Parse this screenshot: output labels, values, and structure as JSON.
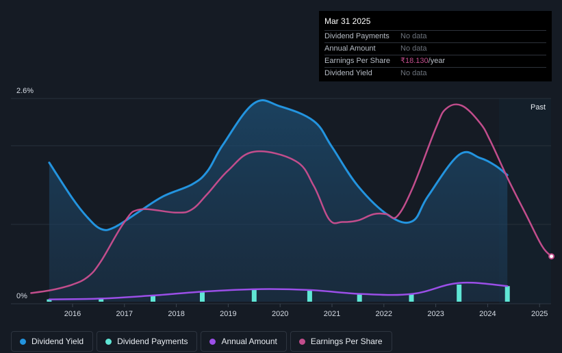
{
  "tooltip": {
    "title": "Mar 31 2025",
    "rows": [
      {
        "label": "Dividend Payments",
        "value": "No data"
      },
      {
        "label": "Annual Amount",
        "value": "No data"
      },
      {
        "label": "Earnings Per Share",
        "value": "₹18.130",
        "unit": "/year"
      },
      {
        "label": "Dividend Yield",
        "value": "No data"
      }
    ]
  },
  "past_label": "Past",
  "legend": [
    {
      "label": "Dividend Yield",
      "color": "#2394df"
    },
    {
      "label": "Dividend Payments",
      "color": "#5fe6d5"
    },
    {
      "label": "Annual Amount",
      "color": "#9b4fe8"
    },
    {
      "label": "Earnings Per Share",
      "color": "#c24d8c"
    }
  ],
  "chart_data": {
    "type": "line",
    "y_axis": {
      "top_label": "2.6%",
      "bottom_label": "0%",
      "ylim": [
        0,
        2.6
      ]
    },
    "x_ticks": [
      "2016",
      "2017",
      "2018",
      "2019",
      "2020",
      "2021",
      "2022",
      "2023",
      "2024",
      "2025"
    ],
    "series": [
      {
        "name": "Dividend Yield",
        "kind": "area",
        "x": [
          2015.55,
          2016.0,
          2016.3,
          2016.55,
          2016.8,
          2017.3,
          2017.75,
          2018.3,
          2018.6,
          2018.9,
          2019.5,
          2020.0,
          2020.65,
          2021.0,
          2021.5,
          2022.1,
          2022.55,
          2022.85,
          2023.45,
          2023.85,
          2024.15,
          2024.38
        ],
        "values": [
          1.78,
          1.32,
          1.07,
          0.93,
          0.95,
          1.16,
          1.35,
          1.5,
          1.67,
          2.01,
          2.54,
          2.5,
          2.31,
          1.98,
          1.48,
          1.1,
          1.03,
          1.35,
          1.88,
          1.84,
          1.74,
          1.62
        ]
      },
      {
        "name": "Earnings Per Share",
        "x": [
          2015.2,
          2015.6,
          2016.0,
          2016.3,
          2016.55,
          2017.0,
          2017.3,
          2018.0,
          2018.3,
          2018.6,
          2019.0,
          2019.5,
          2020.3,
          2020.65,
          2020.95,
          2021.2,
          2021.5,
          2021.8,
          2022.05,
          2022.25,
          2022.55,
          2023.0,
          2023.2,
          2023.5,
          2023.85,
          2024.05,
          2024.4,
          2024.75,
          2025.05,
          2025.23
        ],
        "values": [
          0.11,
          0.15,
          0.22,
          0.32,
          0.52,
          1.02,
          1.18,
          1.14,
          1.18,
          1.38,
          1.68,
          1.92,
          1.8,
          1.48,
          1.05,
          1.02,
          1.04,
          1.12,
          1.12,
          1.09,
          1.45,
          2.22,
          2.47,
          2.51,
          2.29,
          2.06,
          1.56,
          1.1,
          0.71,
          0.58
        ]
      },
      {
        "name": "Annual Amount",
        "x": [
          2015.55,
          2016.55,
          2017.55,
          2018.55,
          2019.55,
          2020.55,
          2021.55,
          2022.55,
          2023.45,
          2024.38
        ],
        "values": [
          0.03,
          0.04,
          0.08,
          0.13,
          0.16,
          0.15,
          0.1,
          0.1,
          0.24,
          0.2
        ]
      },
      {
        "name": "Dividend Payments",
        "kind": "bar",
        "x": [
          2015.55,
          2016.55,
          2017.55,
          2018.5,
          2019.5,
          2020.57,
          2021.53,
          2022.53,
          2023.45,
          2024.38
        ],
        "values": [
          0.03,
          0.04,
          0.08,
          0.12,
          0.16,
          0.15,
          0.1,
          0.1,
          0.22,
          0.2
        ]
      }
    ],
    "forecast_start": 2024.25
  }
}
